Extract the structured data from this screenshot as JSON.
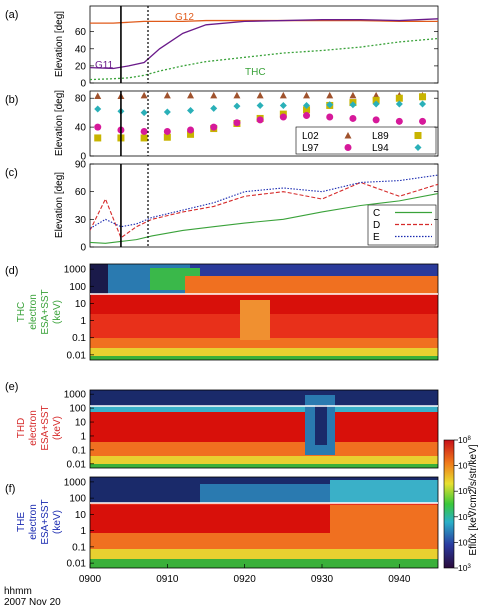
{
  "date_label": {
    "line1": "hhmm",
    "line2": "2007 Nov 20"
  },
  "time_axis": {
    "ticks": [
      "0900",
      "0910",
      "0920",
      "0930",
      "0940"
    ],
    "range": [
      "0900",
      "0945"
    ]
  },
  "vertical_markers": [
    {
      "time": "0904",
      "style": "solid"
    },
    {
      "time": "0907.5",
      "style": "dotted"
    }
  ],
  "panels": {
    "a": {
      "letter": "(a)",
      "ylabel": "Elevation [deg]",
      "yticks": [
        "0",
        "20",
        "40",
        "60"
      ],
      "ylim": [
        0,
        90
      ],
      "labels": {
        "g12": "G12",
        "g11": "G11",
        "thc": "THC"
      },
      "colors": {
        "g12": "#e05a1a",
        "g11": "#6a1a8a",
        "thc": "#3aa23a"
      }
    },
    "b": {
      "letter": "(b)",
      "ylabel": "Elevation [deg]",
      "yticks": [
        "0",
        "40",
        "80"
      ],
      "ylim": [
        0,
        90
      ],
      "legend": [
        {
          "name": "L02",
          "color": "#a0522d",
          "marker": "triangle"
        },
        {
          "name": "L89",
          "color": "#c8b400",
          "marker": "square"
        },
        {
          "name": "L97",
          "color": "#d6199a",
          "marker": "circle"
        },
        {
          "name": "L94",
          "color": "#2ab0b8",
          "marker": "diamond"
        }
      ]
    },
    "c": {
      "letter": "(c)",
      "ylabel": "Elevation [deg]",
      "yticks": [
        "0",
        "30",
        "60",
        "90"
      ],
      "ylim": [
        0,
        90
      ],
      "legend": [
        {
          "name": "C",
          "color": "#3aa23a",
          "style": "solid"
        },
        {
          "name": "D",
          "color": "#d62a2a",
          "style": "dashed"
        },
        {
          "name": "E",
          "color": "#1a2ab0",
          "style": "dotted"
        }
      ]
    },
    "d": {
      "letter": "(d)",
      "label": [
        "THC",
        "electron",
        "ESA+SST",
        "(keV)"
      ],
      "color": "#3aa23a"
    },
    "e": {
      "letter": "(e)",
      "label": [
        "THD",
        "electron",
        "ESA+SST",
        "(keV)"
      ],
      "color": "#d62a2a"
    },
    "f": {
      "letter": "(f)",
      "label": [
        "THE",
        "electron",
        "ESA+SST",
        "(keV)"
      ],
      "color": "#1a2ab0"
    }
  },
  "spectro_yticks": [
    "1000",
    "100",
    "10",
    "1",
    "0.1",
    "0.01"
  ],
  "colorbar": {
    "label": "Eflux [keV/cm2/s/str/keV]",
    "ticks": [
      "10^8",
      "10^7",
      "10^6",
      "10^5",
      "10^4",
      "10^3"
    ]
  },
  "chart_data": [
    {
      "type": "line",
      "panel": "a",
      "title": "",
      "xlabel": "",
      "ylabel": "Elevation [deg]",
      "ylim": [
        0,
        90
      ],
      "x": [
        "0900",
        "0903",
        "0905",
        "0907",
        "0909",
        "0912",
        "0915",
        "0920",
        "0925",
        "0930",
        "0935",
        "0940",
        "0945"
      ],
      "series": [
        {
          "name": "G12",
          "values": [
            70,
            70,
            71,
            72,
            72,
            72,
            73,
            73,
            73,
            73,
            73,
            72,
            72
          ]
        },
        {
          "name": "G11",
          "values": [
            18,
            17,
            20,
            24,
            40,
            58,
            68,
            72,
            73,
            74,
            74,
            73,
            75
          ]
        },
        {
          "name": "THC",
          "values": [
            4,
            5,
            6,
            9,
            14,
            20,
            25,
            30,
            35,
            38,
            42,
            48,
            52
          ]
        }
      ]
    },
    {
      "type": "scatter",
      "panel": "b",
      "ylabel": "Elevation [deg]",
      "ylim": [
        0,
        90
      ],
      "x": [
        "0901",
        "0904",
        "0907",
        "0910",
        "0913",
        "0916",
        "0919",
        "0922",
        "0925",
        "0928",
        "0931",
        "0934",
        "0937",
        "0940",
        "0943"
      ],
      "series": [
        {
          "name": "L02",
          "values": [
            83,
            83,
            84,
            84,
            84,
            84,
            84,
            84,
            84,
            84,
            84,
            84,
            84,
            84,
            84
          ]
        },
        {
          "name": "L89",
          "values": [
            25,
            25,
            25,
            26,
            30,
            38,
            45,
            52,
            58,
            64,
            70,
            74,
            77,
            80,
            82
          ]
        },
        {
          "name": "L97",
          "values": [
            40,
            36,
            34,
            34,
            36,
            40,
            46,
            50,
            54,
            56,
            54,
            52,
            50,
            48,
            48
          ]
        },
        {
          "name": "L94",
          "values": [
            65,
            62,
            60,
            61,
            63,
            66,
            69,
            70,
            70,
            70,
            71,
            71,
            72,
            72,
            72
          ]
        }
      ]
    },
    {
      "type": "line",
      "panel": "c",
      "ylabel": "Elevation [deg]",
      "ylim": [
        0,
        90
      ],
      "x": [
        "0900",
        "0902",
        "0904",
        "0906",
        "0908",
        "0912",
        "0916",
        "0920",
        "0925",
        "0930",
        "0935",
        "0940",
        "0945"
      ],
      "series": [
        {
          "name": "C",
          "values": [
            5,
            4,
            6,
            8,
            12,
            18,
            22,
            26,
            30,
            38,
            45,
            50,
            58
          ]
        },
        {
          "name": "D",
          "values": [
            18,
            52,
            10,
            22,
            30,
            38,
            44,
            55,
            60,
            52,
            70,
            55,
            68
          ]
        },
        {
          "name": "E",
          "values": [
            20,
            30,
            22,
            25,
            32,
            40,
            48,
            60,
            64,
            60,
            70,
            72,
            78
          ]
        }
      ]
    },
    {
      "type": "heatmap",
      "panel": "d",
      "ylabel": "THC electron ESA+SST (keV)",
      "yscale": "log",
      "ylim": [
        0.005,
        2000
      ]
    },
    {
      "type": "heatmap",
      "panel": "e",
      "ylabel": "THD electron ESA+SST (keV)",
      "yscale": "log",
      "ylim": [
        0.005,
        2000
      ]
    },
    {
      "type": "heatmap",
      "panel": "f",
      "ylabel": "THE electron ESA+SST (keV)",
      "yscale": "log",
      "ylim": [
        0.005,
        2000
      ]
    }
  ]
}
